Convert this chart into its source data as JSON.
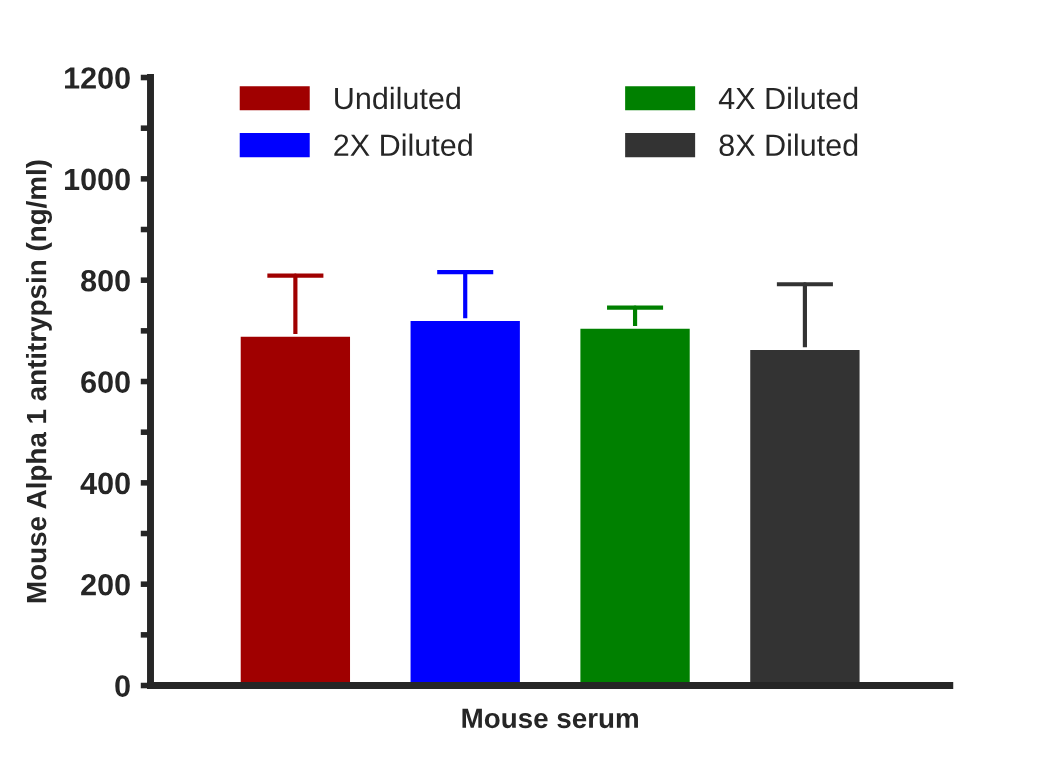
{
  "chart_data": {
    "type": "bar",
    "ylabel": "Mouse Alpha 1 antitrypsin (ng/ml)",
    "categories": [
      "Mouse serum"
    ],
    "series": [
      {
        "name": "Undiluted",
        "color": "#a00000",
        "values": [
          691
        ],
        "errors": [
          [
            691,
            809
          ]
        ]
      },
      {
        "name": "2X Diluted",
        "color": "#0000ff",
        "values": [
          722
        ],
        "errors": [
          [
            722,
            816
          ]
        ]
      },
      {
        "name": "4X Diluted",
        "color": "#008000",
        "values": [
          707
        ],
        "errors": [
          [
            707,
            746
          ]
        ]
      },
      {
        "name": "8X Diluted",
        "color": "#333333",
        "values": [
          665
        ],
        "errors": [
          [
            665,
            792
          ]
        ]
      }
    ],
    "ylim": [
      0,
      1200
    ],
    "yticks": [
      0,
      {
        "value": 100,
        "label": null
      },
      200,
      {
        "value": 300,
        "label": null
      },
      400,
      {
        "value": 500,
        "label": null
      },
      600,
      {
        "value": 700,
        "label": null
      },
      800,
      {
        "value": 900,
        "label": null
      },
      1000,
      {
        "value": 1100,
        "label": null
      },
      1200
    ],
    "grid": false,
    "legend": "top"
  }
}
